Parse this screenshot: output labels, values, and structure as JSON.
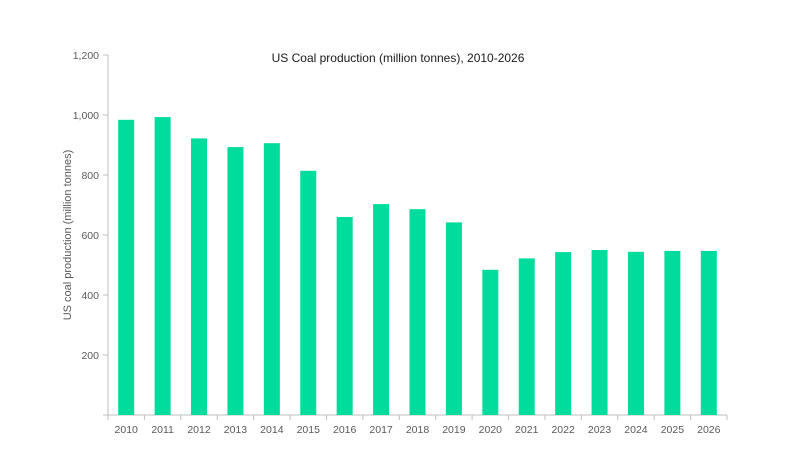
{
  "chart_data": {
    "type": "bar",
    "title": "US Coal production (million tonnes), 2010-2026",
    "xlabel": "",
    "ylabel": "US coal production (million tonnes)",
    "categories": [
      "2010",
      "2011",
      "2012",
      "2013",
      "2014",
      "2015",
      "2016",
      "2017",
      "2018",
      "2019",
      "2020",
      "2021",
      "2022",
      "2023",
      "2024",
      "2025",
      "2026"
    ],
    "values": [
      984,
      993,
      922,
      893,
      906,
      814,
      660,
      703,
      686,
      642,
      484,
      522,
      543,
      550,
      544,
      547,
      547
    ],
    "ylim": [
      0,
      1200
    ],
    "yticks": [
      0,
      200,
      400,
      600,
      800,
      1000,
      1200
    ],
    "ytick_labels": [
      "",
      "200",
      "400",
      "600",
      "800",
      "1,000",
      "1,200"
    ],
    "grid": false,
    "legend": "none",
    "colors": {
      "bar": "#00dc9b",
      "axis": "#bfbfbf",
      "text": "#595959"
    }
  }
}
